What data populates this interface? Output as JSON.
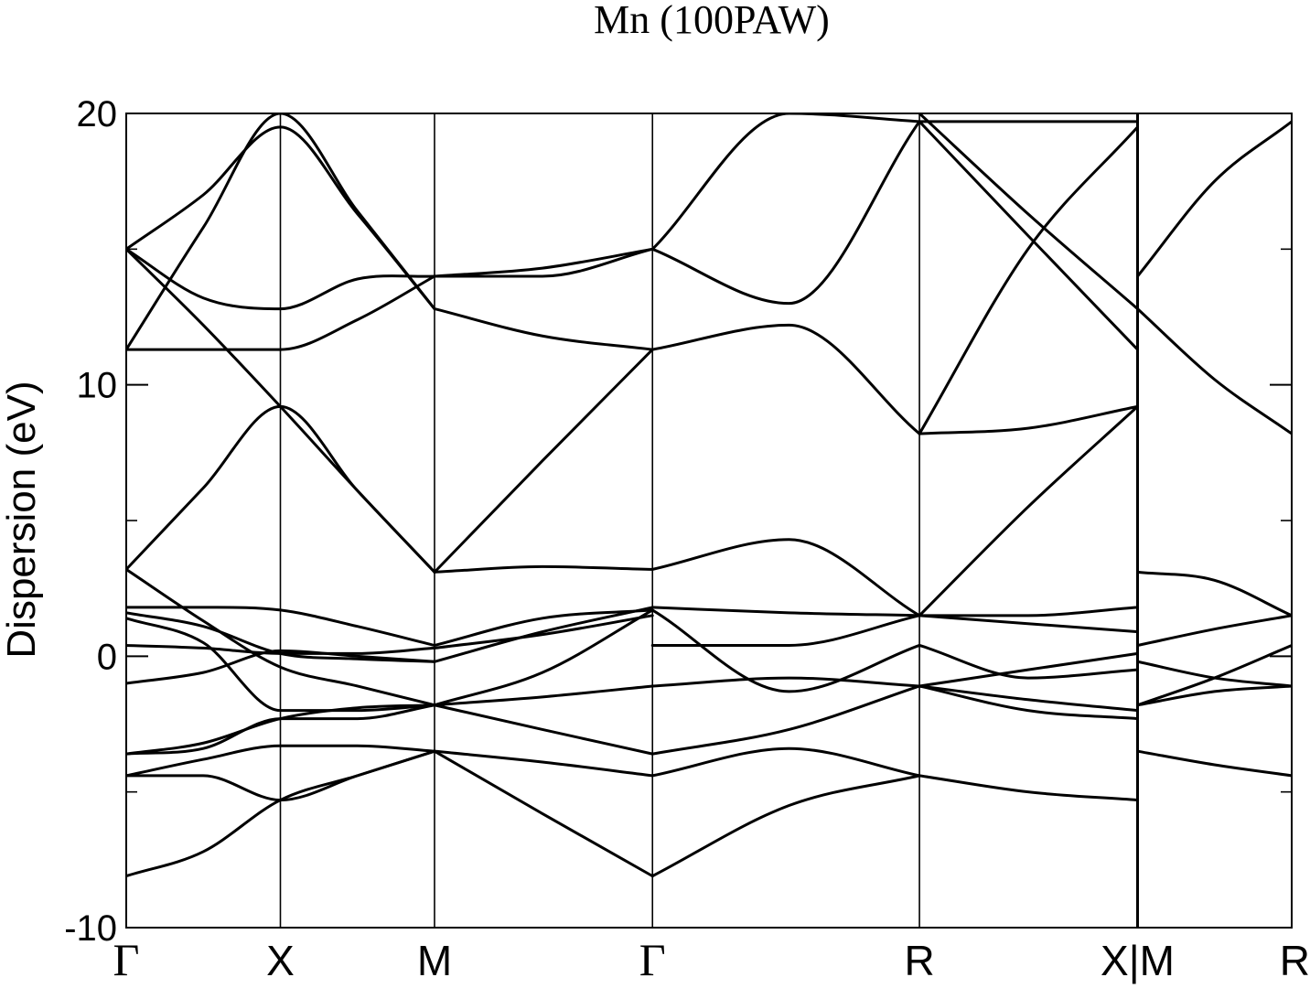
{
  "chart_data": {
    "type": "line",
    "title": "Mn (100PAW)",
    "xlabel": "",
    "ylabel": "Dispersion (eV)",
    "ylim": [
      -10,
      20
    ],
    "yticks": [
      "20",
      "10",
      "0",
      "-10"
    ],
    "ytick_values": [
      20,
      10,
      0,
      -10
    ],
    "ytick_minor_values": [
      15,
      5,
      -5
    ],
    "grid": false,
    "legend": "none",
    "line_color": "#000000",
    "high_symmetry_points": [
      "Γ",
      "X",
      "M",
      "Γ",
      "R",
      "X|M",
      "R"
    ],
    "high_symmetry_positions": [
      0,
      1,
      2,
      3.414,
      5.146,
      6.561,
      7.561
    ],
    "xlim": [
      0,
      7.561
    ],
    "series": [
      {
        "x": [
          0,
          0.5,
          1,
          1.5,
          2
        ],
        "values": [
          -8.1,
          -7.2,
          -5.3,
          -4.4,
          -3.5
        ]
      },
      {
        "x": [
          0,
          0.5,
          1,
          1.5,
          2
        ],
        "values": [
          -4.4,
          -4.4,
          -5.3,
          -4.4,
          -3.5
        ]
      },
      {
        "x": [
          0,
          0.5,
          1,
          1.5,
          2
        ],
        "values": [
          -3.6,
          -3.2,
          -2.3,
          -1.9,
          -1.8
        ]
      },
      {
        "x": [
          0,
          0.5,
          1,
          1.5,
          2
        ],
        "values": [
          -4.4,
          -3.8,
          -3.3,
          -3.3,
          -3.5
        ]
      },
      {
        "x": [
          0,
          0.5,
          1,
          1.5,
          2
        ],
        "values": [
          -3.6,
          -3.4,
          -2.3,
          -2.3,
          -1.8
        ]
      },
      {
        "x": [
          0,
          0.5,
          1,
          1.5,
          2
        ],
        "values": [
          -1.0,
          -0.6,
          0.2,
          0.0,
          -0.2
        ]
      },
      {
        "x": [
          0,
          0.5,
          1,
          1.5,
          2
        ],
        "values": [
          0.4,
          0.3,
          0.1,
          0.1,
          0.3
        ]
      },
      {
        "x": [
          0,
          0.5,
          1,
          1.5,
          2
        ],
        "values": [
          1.4,
          0.5,
          -2.0,
          -2.0,
          -1.8
        ]
      },
      {
        "x": [
          0,
          0.5,
          1,
          1.5,
          2
        ],
        "values": [
          1.6,
          1.1,
          0.1,
          -0.1,
          -0.2
        ]
      },
      {
        "x": [
          0,
          0.5,
          1,
          1.5,
          2
        ],
        "values": [
          1.8,
          1.8,
          1.7,
          1.1,
          0.4
        ]
      },
      {
        "x": [
          0,
          0.5,
          1,
          1.5,
          2
        ],
        "values": [
          3.2,
          1.3,
          -0.4,
          -1.1,
          -1.8
        ]
      },
      {
        "x": [
          0,
          0.5,
          1,
          1.5,
          2
        ],
        "values": [
          3.2,
          6.2,
          9.2,
          6.1,
          3.1
        ]
      },
      {
        "x": [
          0,
          0.5,
          1,
          1.5,
          2
        ],
        "values": [
          11.3,
          11.3,
          11.3,
          12.4,
          14.0
        ]
      },
      {
        "x": [
          0,
          0.5,
          1,
          1.5,
          2
        ],
        "values": [
          11.3,
          15.8,
          20.0,
          16.4,
          12.8
        ]
      },
      {
        "x": [
          0,
          0.5,
          1,
          1.5,
          2
        ],
        "values": [
          15.0,
          13.2,
          12.8,
          13.9,
          14.0
        ]
      },
      {
        "x": [
          0,
          0.5,
          1,
          1.5,
          2
        ],
        "values": [
          15.0,
          12.2,
          9.2,
          6.1,
          3.1
        ]
      },
      {
        "x": [
          0,
          0.5,
          1,
          1.5,
          2
        ],
        "values": [
          15.0,
          17.0,
          19.5,
          16.3,
          12.8
        ]
      },
      {
        "x": [
          2,
          2.7,
          3.414
        ],
        "values": [
          -3.5,
          -5.8,
          -8.1
        ]
      },
      {
        "x": [
          2,
          2.7,
          3.414
        ],
        "values": [
          -3.5,
          -3.9,
          -4.4
        ]
      },
      {
        "x": [
          2,
          2.7,
          3.414
        ],
        "values": [
          -1.8,
          -2.7,
          -3.6
        ]
      },
      {
        "x": [
          2,
          2.7,
          3.414
        ],
        "values": [
          -1.8,
          -1.5,
          -1.1
        ]
      },
      {
        "x": [
          2,
          2.7,
          3.414
        ],
        "values": [
          -0.2,
          0.9,
          1.8
        ]
      },
      {
        "x": [
          2,
          2.7,
          3.414
        ],
        "values": [
          0.3,
          0.8,
          1.5
        ]
      },
      {
        "x": [
          2,
          2.7,
          3.414
        ],
        "values": [
          0.4,
          1.4,
          1.7
        ]
      },
      {
        "x": [
          2,
          2.7,
          3.414
        ],
        "values": [
          -1.8,
          -0.6,
          1.7
        ]
      },
      {
        "x": [
          2,
          2.7,
          3.414
        ],
        "values": [
          3.1,
          3.3,
          3.2
        ]
      },
      {
        "x": [
          2,
          2.7,
          3.414
        ],
        "values": [
          3.1,
          7.2,
          11.3
        ]
      },
      {
        "x": [
          2,
          2.7,
          3.414
        ],
        "values": [
          12.8,
          11.8,
          11.3
        ]
      },
      {
        "x": [
          2,
          2.7,
          3.414
        ],
        "values": [
          14.0,
          14.0,
          15.0
        ]
      },
      {
        "x": [
          2,
          2.7,
          3.414
        ],
        "values": [
          14.0,
          14.3,
          15.0
        ]
      },
      {
        "x": [
          3.414,
          4.3,
          5.146
        ],
        "values": [
          -8.1,
          -5.5,
          -4.4
        ]
      },
      {
        "x": [
          3.414,
          4.3,
          5.146
        ],
        "values": [
          -4.4,
          -3.4,
          -4.4
        ]
      },
      {
        "x": [
          3.414,
          4.3,
          5.146
        ],
        "values": [
          -3.6,
          -2.7,
          -1.1
        ]
      },
      {
        "x": [
          3.414,
          4.3,
          5.146
        ],
        "values": [
          -1.1,
          -0.8,
          -1.1
        ]
      },
      {
        "x": [
          3.414,
          4.3,
          5.146
        ],
        "values": [
          1.7,
          -1.3,
          0.4
        ]
      },
      {
        "x": [
          3.414,
          4.3,
          5.146
        ],
        "values": [
          1.8,
          1.6,
          1.5
        ]
      },
      {
        "x": [
          3.414,
          4.3,
          5.146
        ],
        "values": [
          0.4,
          0.4,
          1.5
        ]
      },
      {
        "x": [
          3.414,
          4.3,
          5.146
        ],
        "values": [
          3.2,
          4.3,
          1.5
        ]
      },
      {
        "x": [
          3.414,
          4.3,
          5.146
        ],
        "values": [
          11.3,
          12.2,
          8.2
        ]
      },
      {
        "x": [
          3.414,
          4.3,
          5.146
        ],
        "values": [
          15.0,
          13.0,
          19.7
        ]
      },
      {
        "x": [
          3.414,
          4.3,
          5.146
        ],
        "values": [
          15.0,
          20.0,
          19.7
        ]
      },
      {
        "x": [
          5.146,
          5.85,
          6.561
        ],
        "values": [
          -4.4,
          -5.0,
          -5.3
        ]
      },
      {
        "x": [
          5.146,
          5.85,
          6.561
        ],
        "values": [
          -1.1,
          -2.0,
          -2.3
        ]
      },
      {
        "x": [
          5.146,
          5.85,
          6.561
        ],
        "values": [
          -1.1,
          -1.6,
          -2.0
        ]
      },
      {
        "x": [
          5.146,
          5.85,
          6.561
        ],
        "values": [
          -1.1,
          -0.5,
          0.1
        ]
      },
      {
        "x": [
          5.146,
          5.85,
          6.561
        ],
        "values": [
          0.4,
          -0.8,
          -0.5
        ]
      },
      {
        "x": [
          5.146,
          5.85,
          6.561
        ],
        "values": [
          1.5,
          1.2,
          0.9
        ]
      },
      {
        "x": [
          5.146,
          5.85,
          6.561
        ],
        "values": [
          1.5,
          1.5,
          1.8
        ]
      },
      {
        "x": [
          5.146,
          5.85,
          6.561
        ],
        "values": [
          1.5,
          5.5,
          9.2
        ]
      },
      {
        "x": [
          5.146,
          5.85,
          6.561
        ],
        "values": [
          8.2,
          8.4,
          9.2
        ]
      },
      {
        "x": [
          5.146,
          5.85,
          6.561
        ],
        "values": [
          8.2,
          15.0,
          19.5
        ]
      },
      {
        "x": [
          5.146,
          5.85,
          6.561
        ],
        "values": [
          19.7,
          15.5,
          11.3
        ]
      },
      {
        "x": [
          5.146,
          5.85,
          6.561
        ],
        "values": [
          19.7,
          19.7,
          19.7
        ]
      },
      {
        "x": [
          5.146,
          5.85,
          6.561
        ],
        "values": [
          20.0,
          16.3,
          12.8
        ]
      },
      {
        "x": [
          6.561,
          7.06,
          7.561
        ],
        "values": [
          -3.5,
          -4.0,
          -4.4
        ]
      },
      {
        "x": [
          6.561,
          7.06,
          7.561
        ],
        "values": [
          -1.8,
          -1.3,
          -1.1
        ]
      },
      {
        "x": [
          6.561,
          7.06,
          7.561
        ],
        "values": [
          -1.8,
          -0.8,
          0.4
        ]
      },
      {
        "x": [
          6.561,
          7.06,
          7.561
        ],
        "values": [
          -0.2,
          -0.8,
          -1.1
        ]
      },
      {
        "x": [
          6.561,
          7.06,
          7.561
        ],
        "values": [
          0.4,
          1.0,
          1.5
        ]
      },
      {
        "x": [
          6.561,
          7.06,
          7.561
        ],
        "values": [
          3.1,
          2.8,
          1.5
        ]
      },
      {
        "x": [
          6.561,
          7.06,
          7.561
        ],
        "values": [
          12.8,
          10.2,
          8.2
        ]
      },
      {
        "x": [
          6.561,
          7.06,
          7.561
        ],
        "values": [
          14.0,
          17.5,
          19.7
        ]
      }
    ]
  }
}
